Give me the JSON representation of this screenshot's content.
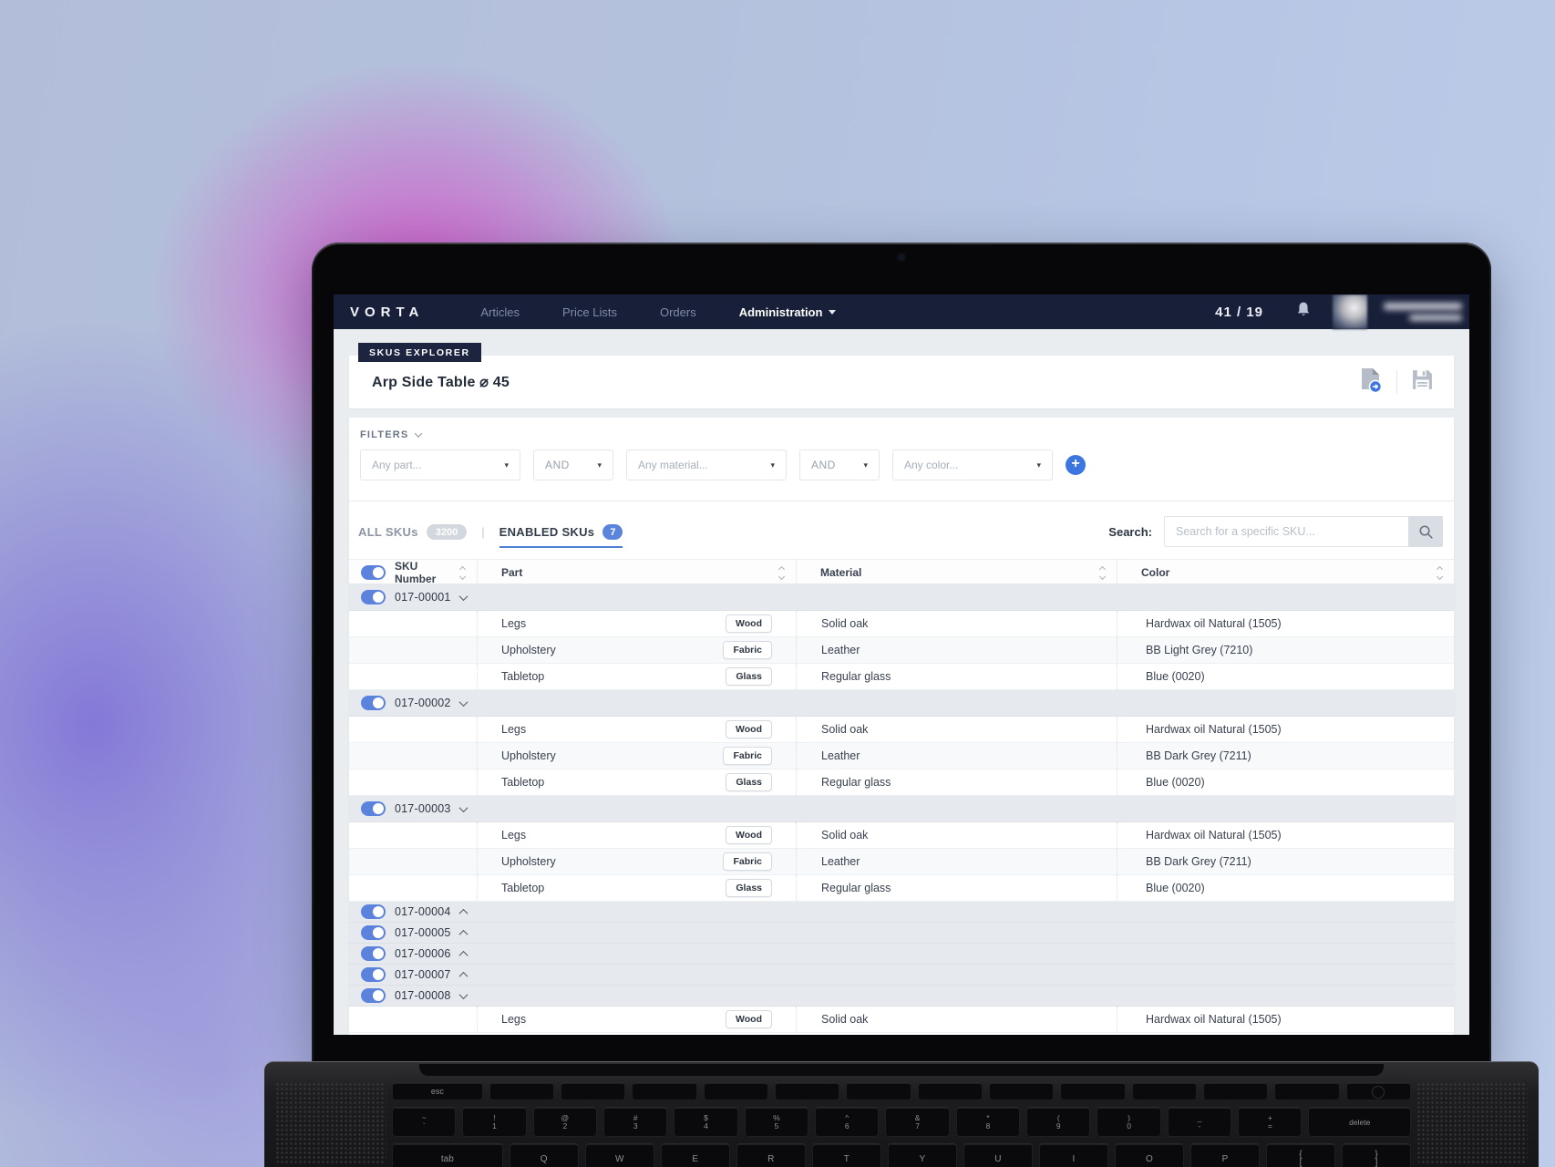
{
  "nav": {
    "brand": "VORTA",
    "links": [
      {
        "label": "Articles"
      },
      {
        "label": "Price Lists"
      },
      {
        "label": "Orders"
      }
    ],
    "admin_label": "Administration",
    "counter": "41 / 19"
  },
  "explorer": {
    "badge": "SKUS EXPLORER",
    "title": "Arp Side Table ⌀ 45"
  },
  "icons": {
    "title_actions": [
      "file-export-icon",
      "save-icon"
    ],
    "nav": [
      "bell-icon"
    ],
    "search": "magnifier-icon"
  },
  "colors": {
    "nav_bg": "#181f38",
    "accent_blue": "#3d76e0",
    "toggle_blue": "#5b82dc",
    "enabled_underline": "#4f7fd6",
    "page_bg": "#e9edf0"
  },
  "filters": {
    "label": "FILTERS",
    "dropdowns": [
      {
        "text": "Any part...",
        "kind": "field",
        "name": "part-filter-dropdown"
      },
      {
        "text": "AND",
        "kind": "and",
        "name": "operator-dropdown-1"
      },
      {
        "text": "Any material...",
        "kind": "field",
        "name": "material-filter-dropdown"
      },
      {
        "text": "AND",
        "kind": "and",
        "name": "operator-dropdown-2"
      },
      {
        "text": "Any color...",
        "kind": "field",
        "name": "color-filter-dropdown"
      }
    ]
  },
  "tabs": {
    "all_label": "ALL SKUs",
    "all_count": "3200",
    "separator": "|",
    "enabled_label": "ENABLED SKUs",
    "enabled_count": "7",
    "search_label": "Search:",
    "search_placeholder": "Search for a specific SKU..."
  },
  "table": {
    "headers": [
      "SKU Number",
      "Part",
      "Material",
      "Color"
    ],
    "groups": [
      {
        "sku": "017-00001",
        "chevron": "down",
        "rows": [
          {
            "part": "Legs",
            "badge": "Wood",
            "material": "Solid oak",
            "color": "Hardwax oil Natural (1505)"
          },
          {
            "part": "Upholstery",
            "badge": "Fabric",
            "material": "Leather",
            "color": "BB Light Grey (7210)"
          },
          {
            "part": "Tabletop",
            "badge": "Glass",
            "material": "Regular glass",
            "color": "Blue (0020)"
          }
        ]
      },
      {
        "sku": "017-00002",
        "chevron": "down",
        "rows": [
          {
            "part": "Legs",
            "badge": "Wood",
            "material": "Solid oak",
            "color": "Hardwax oil Natural (1505)"
          },
          {
            "part": "Upholstery",
            "badge": "Fabric",
            "material": "Leather",
            "color": "BB Dark Grey (7211)"
          },
          {
            "part": "Tabletop",
            "badge": "Glass",
            "material": "Regular glass",
            "color": "Blue (0020)"
          }
        ]
      },
      {
        "sku": "017-00003",
        "chevron": "down",
        "rows": [
          {
            "part": "Legs",
            "badge": "Wood",
            "material": "Solid oak",
            "color": "Hardwax oil Natural (1505)"
          },
          {
            "part": "Upholstery",
            "badge": "Fabric",
            "material": "Leather",
            "color": "BB Dark Grey (7211)"
          },
          {
            "part": "Tabletop",
            "badge": "Glass",
            "material": "Regular glass",
            "color": "Blue (0020)"
          }
        ]
      },
      {
        "sku": "017-00004",
        "chevron": "up",
        "rows": []
      },
      {
        "sku": "017-00005",
        "chevron": "up",
        "rows": []
      },
      {
        "sku": "017-00006",
        "chevron": "up",
        "rows": []
      },
      {
        "sku": "017-00007",
        "chevron": "up",
        "rows": []
      },
      {
        "sku": "017-00008",
        "chevron": "down",
        "rows": [
          {
            "part": "Legs",
            "badge": "Wood",
            "material": "Solid oak",
            "color": "Hardwax oil Natural (1505)"
          }
        ]
      }
    ]
  },
  "keyboard": {
    "function_row": [
      "esc",
      "",
      "",
      "",
      "",
      "",
      "",
      "",
      "",
      "",
      "",
      "",
      "",
      ""
    ],
    "number_row": [
      "~\n`",
      "!\n1",
      "@\n2",
      "#\n3",
      "$\n4",
      "%\n5",
      "^\n6",
      "&\n7",
      "*\n8",
      "(\n9",
      ")\n0",
      "_\n-",
      "+\n=",
      "delete"
    ],
    "letter_row": [
      "tab",
      "Q",
      "W",
      "E",
      "R",
      "T",
      "Y",
      "U",
      "I",
      "O",
      "P",
      "{\n[",
      "}\n]"
    ]
  }
}
